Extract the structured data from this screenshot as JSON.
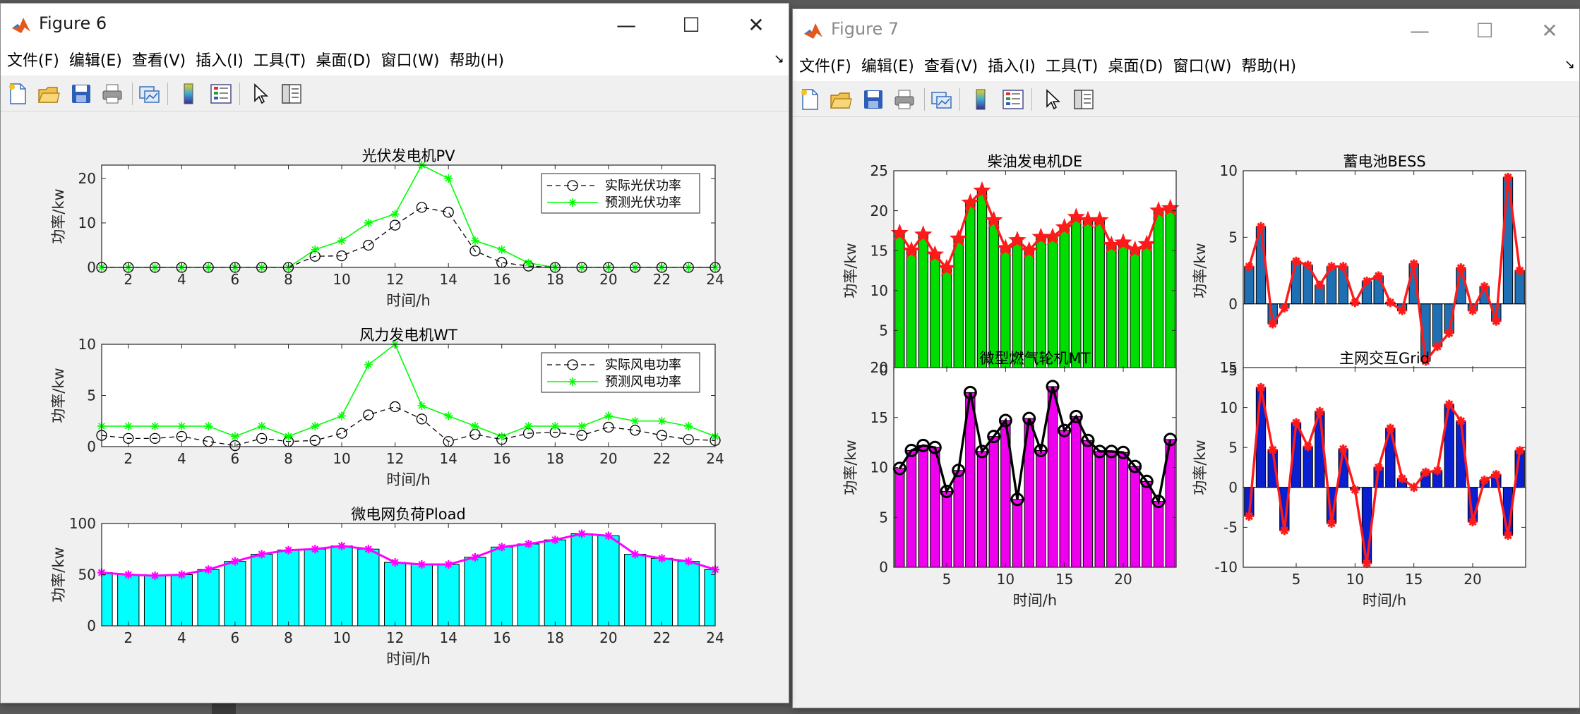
{
  "windows": [
    {
      "title": "Figure 6",
      "active": true
    },
    {
      "title": "Figure 7",
      "active": false
    }
  ],
  "window_buttons": {
    "minimize": "—",
    "maximize": "☐",
    "close": "✕"
  },
  "menu": [
    "文件(F)",
    "编辑(E)",
    "查看(V)",
    "插入(I)",
    "工具(T)",
    "桌面(D)",
    "窗口(W)",
    "帮助(H)"
  ],
  "menu_dock_glyph": "↘",
  "toolbar_icons": [
    "new-figure-icon",
    "open-file-icon",
    "save-icon",
    "print-icon",
    "link-plot-icon",
    "colorbar-icon",
    "legend-icon",
    "pointer-icon",
    "property-inspector-icon"
  ],
  "colors": {
    "pv_actual": "#000000",
    "pv_forecast": "#00ff00",
    "load_bar": "#00ffff",
    "load_line": "#ff00ff",
    "de_bar": "#00dd00",
    "de_line": "#ff1a1a",
    "bess_bar": "#1f6fb5",
    "mt_bar": "#ee00ee",
    "grid_bar": "#0a1fcf"
  },
  "chart_data": [
    {
      "id": "pv",
      "figure": "Figure 6",
      "type": "line",
      "title": "光伏发电机PV",
      "xlabel": "时间/h",
      "ylabel": "功率/kw",
      "xlim": [
        1,
        24
      ],
      "ylim": [
        0,
        23
      ],
      "xticks": [
        2,
        4,
        6,
        8,
        10,
        12,
        14,
        16,
        18,
        20,
        22,
        24
      ],
      "yticks": [
        0,
        10,
        20
      ],
      "legend": "top-right",
      "x": [
        1,
        2,
        3,
        4,
        5,
        6,
        7,
        8,
        9,
        10,
        11,
        12,
        13,
        14,
        15,
        16,
        17,
        18,
        19,
        20,
        21,
        22,
        23,
        24
      ],
      "series": [
        {
          "name": "实际光伏功率",
          "style": "dashed-circle",
          "values": [
            0,
            0,
            0,
            0,
            0,
            0,
            0,
            0,
            2.5,
            2.6,
            5,
            9.5,
            13.5,
            12.4,
            3.7,
            1.1,
            0.3,
            0,
            0,
            0,
            0,
            0,
            0,
            0
          ]
        },
        {
          "name": "预测光伏功率",
          "style": "solid-star",
          "values": [
            0,
            0,
            0,
            0,
            0,
            0,
            0,
            0,
            4,
            6,
            10,
            12,
            23,
            20,
            6,
            4,
            1,
            0,
            0,
            0,
            0,
            0,
            0,
            0
          ]
        }
      ]
    },
    {
      "id": "wt",
      "figure": "Figure 6",
      "type": "line",
      "title": "风力发电机WT",
      "xlabel": "时间/h",
      "ylabel": "功率/kw",
      "xlim": [
        1,
        24
      ],
      "ylim": [
        0,
        10
      ],
      "xticks": [
        2,
        4,
        6,
        8,
        10,
        12,
        14,
        16,
        18,
        20,
        22,
        24
      ],
      "yticks": [
        0,
        5,
        10
      ],
      "legend": "top-right",
      "x": [
        1,
        2,
        3,
        4,
        5,
        6,
        7,
        8,
        9,
        10,
        11,
        12,
        13,
        14,
        15,
        16,
        17,
        18,
        19,
        20,
        21,
        22,
        23,
        24
      ],
      "series": [
        {
          "name": "实际风电功率",
          "style": "dashed-circle",
          "values": [
            1.1,
            0.8,
            0.8,
            1,
            0.5,
            0.1,
            0.8,
            0.5,
            0.6,
            1.3,
            3.1,
            3.9,
            2.7,
            0.5,
            1.2,
            0.7,
            1.3,
            1.4,
            1.1,
            1.9,
            1.6,
            1.1,
            0.7,
            0.6
          ]
        },
        {
          "name": "预测风电功率",
          "style": "solid-star",
          "values": [
            2,
            2,
            2,
            2,
            2,
            1,
            2,
            1,
            2,
            3,
            8,
            10,
            4,
            3,
            2,
            1,
            2,
            2,
            2,
            3,
            2.5,
            2.5,
            2,
            1
          ]
        }
      ]
    },
    {
      "id": "load",
      "figure": "Figure 6",
      "type": "bar",
      "title": "微电网负荷Pload",
      "xlabel": "时间/h",
      "ylabel": "功率/kw",
      "xlim": [
        1,
        24
      ],
      "ylim": [
        0,
        100
      ],
      "xticks": [
        2,
        4,
        6,
        8,
        10,
        12,
        14,
        16,
        18,
        20,
        22,
        24
      ],
      "yticks": [
        0,
        50,
        100
      ],
      "x": [
        1,
        2,
        3,
        4,
        5,
        6,
        7,
        8,
        9,
        10,
        11,
        12,
        13,
        14,
        15,
        16,
        17,
        18,
        19,
        20,
        21,
        22,
        23,
        24
      ],
      "values": [
        52,
        50,
        49,
        50,
        55,
        63,
        70,
        74,
        75,
        78,
        75,
        62,
        60,
        60,
        67,
        77,
        80,
        84,
        90,
        88,
        70,
        66,
        63,
        55
      ]
    },
    {
      "id": "de",
      "figure": "Figure 7",
      "type": "bar",
      "title": "柴油发电机DE",
      "xlabel": "时间/h",
      "ylabel": "功率/kw",
      "xlim": [
        0.5,
        24.5
      ],
      "ylim": [
        0,
        25
      ],
      "xticks": [
        5,
        10,
        15,
        20
      ],
      "yticks": [
        0,
        5,
        10,
        15,
        20,
        25
      ],
      "x": [
        1,
        2,
        3,
        4,
        5,
        6,
        7,
        8,
        9,
        10,
        11,
        12,
        13,
        14,
        15,
        16,
        17,
        18,
        19,
        20,
        21,
        22,
        23,
        24
      ],
      "values": [
        17.2,
        15,
        17,
        14.5,
        12.8,
        16.5,
        21,
        22.5,
        18.8,
        15.3,
        16.3,
        15,
        16.7,
        16.7,
        17.9,
        19.2,
        18.8,
        18.8,
        15.7,
        16,
        15.1,
        15.8,
        20,
        20.3
      ]
    },
    {
      "id": "bess",
      "figure": "Figure 7",
      "type": "bar",
      "title": "蓄电池BESS",
      "xlabel": "时间/h",
      "ylabel": "功率/kw",
      "xlim": [
        0.5,
        24.5
      ],
      "ylim": [
        -5,
        10
      ],
      "xticks": [
        5,
        10,
        15,
        20
      ],
      "yticks": [
        -5,
        0,
        5,
        10
      ],
      "x": [
        1,
        2,
        3,
        4,
        5,
        6,
        7,
        8,
        9,
        10,
        11,
        12,
        13,
        14,
        15,
        16,
        17,
        18,
        19,
        20,
        21,
        22,
        23,
        24
      ],
      "values": [
        2.8,
        5.8,
        -1.5,
        -0.3,
        3.2,
        2.9,
        1.4,
        2.8,
        2.8,
        0.1,
        1.7,
        2.1,
        0.1,
        -0.5,
        3,
        -4.3,
        -3.2,
        -2.2,
        2.7,
        -0.5,
        1.3,
        -1.3,
        9.5,
        2.5
      ]
    },
    {
      "id": "mt",
      "figure": "Figure 7",
      "type": "bar",
      "title": "微型燃气轮机MT",
      "xlabel": "时间/h",
      "ylabel": "功率/kw",
      "xlim": [
        0.5,
        24.5
      ],
      "ylim": [
        0,
        20
      ],
      "xticks": [
        5,
        10,
        15,
        20
      ],
      "yticks": [
        0,
        5,
        10,
        15,
        20
      ],
      "x": [
        1,
        2,
        3,
        4,
        5,
        6,
        7,
        8,
        9,
        10,
        11,
        12,
        13,
        14,
        15,
        16,
        17,
        18,
        19,
        20,
        21,
        22,
        23,
        24
      ],
      "values": [
        9.9,
        11.7,
        12.2,
        12,
        7.6,
        9.7,
        17.5,
        11.6,
        13.1,
        14.7,
        6.8,
        14.9,
        11.7,
        18.1,
        13.7,
        15.1,
        12.7,
        11.6,
        11.6,
        11.5,
        10.1,
        8.6,
        6.6,
        12.8
      ]
    },
    {
      "id": "grid",
      "figure": "Figure 7",
      "type": "bar",
      "title": "主网交互Grid",
      "xlabel": "时间/h",
      "ylabel": "功率/kw",
      "xlim": [
        0.5,
        24.5
      ],
      "ylim": [
        -10,
        15
      ],
      "xticks": [
        5,
        10,
        15,
        20
      ],
      "yticks": [
        -10,
        -5,
        0,
        5,
        10,
        15
      ],
      "x": [
        1,
        2,
        3,
        4,
        5,
        6,
        7,
        8,
        9,
        10,
        11,
        12,
        13,
        14,
        15,
        16,
        17,
        18,
        19,
        20,
        21,
        22,
        23,
        24
      ],
      "values": [
        -3.6,
        12.5,
        4.7,
        -5.4,
        8.1,
        5.1,
        9.5,
        -4.5,
        4.8,
        -0.3,
        -9.5,
        2.5,
        7.4,
        1.1,
        0,
        1.9,
        2.1,
        10.4,
        8.3,
        -4.3,
        0.9,
        1.6,
        -6,
        4.6
      ]
    }
  ]
}
